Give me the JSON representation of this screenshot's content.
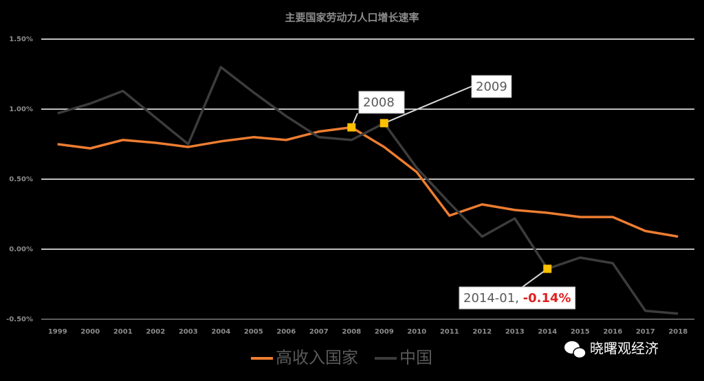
{
  "chart_data": {
    "type": "line",
    "title": "主要国家劳动力人口增长速率",
    "categories": [
      "1999",
      "2000",
      "2001",
      "2002",
      "2003",
      "2004",
      "2005",
      "2006",
      "2007",
      "2008",
      "2009",
      "2010",
      "2011",
      "2012",
      "2013",
      "2014",
      "2015",
      "2016",
      "2017",
      "2018"
    ],
    "series": [
      {
        "name": "高收入国家",
        "color": "#ed7d31",
        "values": [
          0.75,
          0.72,
          0.78,
          0.76,
          0.73,
          0.77,
          0.8,
          0.78,
          0.84,
          0.87,
          0.73,
          0.55,
          0.24,
          0.32,
          0.28,
          0.26,
          0.23,
          0.23,
          0.13,
          0.09
        ]
      },
      {
        "name": "中国",
        "color": "#3c3c3c",
        "values": [
          0.97,
          1.04,
          1.13,
          0.94,
          0.75,
          1.3,
          1.12,
          0.95,
          0.8,
          0.78,
          0.9,
          0.58,
          0.33,
          0.09,
          0.22,
          -0.14,
          -0.06,
          -0.1,
          -0.44,
          -0.46
        ]
      }
    ],
    "ylim": [
      -0.5,
      1.5
    ],
    "yticks": [
      {
        "value": -0.5,
        "label": "-0.50%"
      },
      {
        "value": 0,
        "label": "0.00%"
      },
      {
        "value": 0.5,
        "label": "0.50%"
      },
      {
        "value": 1.0,
        "label": "1.00%"
      },
      {
        "value": 1.5,
        "label": "1.50%"
      }
    ],
    "grid": true,
    "legend": "bottom",
    "annotations": [
      {
        "label": "2008"
      },
      {
        "label": "2009"
      },
      {
        "label": "2014-01,",
        "value_label": "-0.14%"
      }
    ],
    "watermark": "晓曙观经济"
  }
}
